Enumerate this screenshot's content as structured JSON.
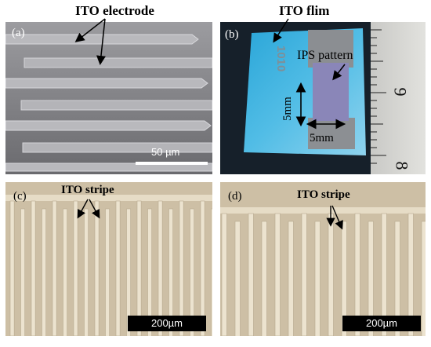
{
  "panel_a": {
    "label": "(a)",
    "caption": "ITO electrode",
    "scale_bar": "50 µm"
  },
  "panel_b": {
    "label": "(b)",
    "caption": "ITO flim",
    "pattern_label": "IPS pattern",
    "width_label": "5mm",
    "height_label": "5mm",
    "ruler_number_top": "9",
    "ruler_number_bottom": "8",
    "film_marking": "1010"
  },
  "panel_c": {
    "label": "(c)",
    "caption": "ITO stripe",
    "scale_bar": "200µm"
  },
  "panel_d": {
    "label": "(d)",
    "caption": "ITO stripe",
    "scale_bar": "200µm"
  }
}
